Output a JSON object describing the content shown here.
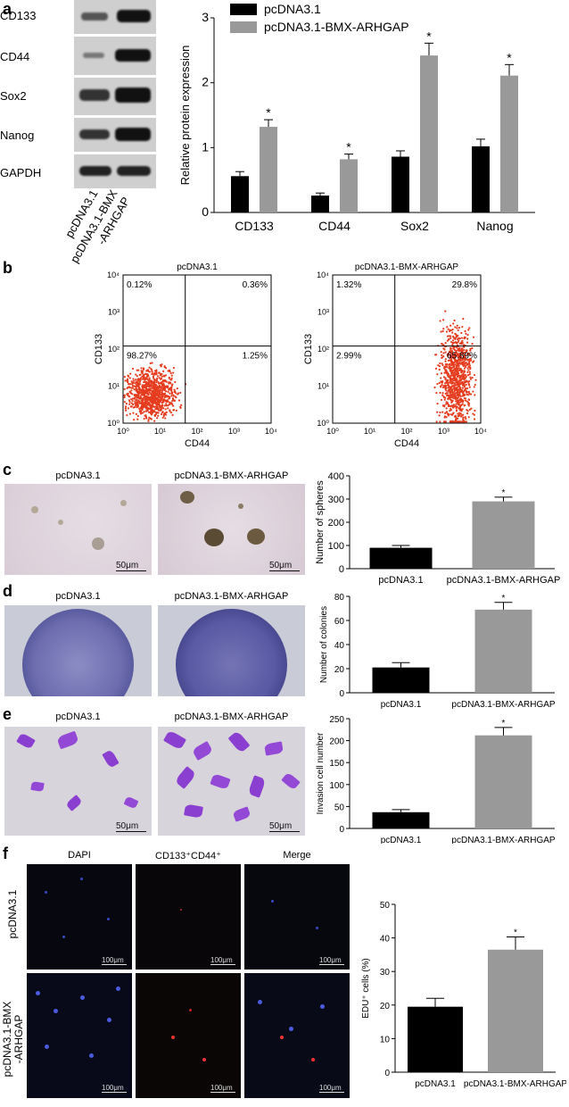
{
  "panels": {
    "a": "a",
    "b": "b",
    "c": "c",
    "d": "d",
    "e": "e",
    "f": "f"
  },
  "western_blot": {
    "proteins": [
      "CD133",
      "CD44",
      "Sox2",
      "Nanog",
      "GAPDH"
    ],
    "lanes": [
      "pcDNA3.1",
      "pcDNA3.1-BMX\n-ARHGAP"
    ],
    "lane_1": "pcDNA3.1",
    "lane_2_line1": "pcDNA3.1-BMX",
    "lane_2_line2": "-ARHGAP"
  },
  "flow": {
    "left": {
      "title": "pcDNA3.1",
      "ul": "0.12%",
      "ur": "0.36%",
      "ll": "98.27%",
      "lr": "1.25%"
    },
    "right": {
      "title": "pcDNA3.1-BMX-ARHGAP",
      "ul": "1.32%",
      "ur": "29.8%",
      "ll": "2.99%",
      "lr": "65.89%"
    },
    "xlabel": "CD44",
    "ylabel": "CD133",
    "ticks": [
      "10⁰",
      "10¹",
      "10²",
      "10³",
      "10⁴"
    ]
  },
  "images": {
    "c_left": "pcDNA3.1",
    "c_right": "pcDNA3.1-BMX-ARHGAP",
    "d_left": "pcDNA3.1",
    "d_right": "pcDNA3.1-BMX-ARHGAP",
    "e_left": "pcDNA3.1",
    "e_right": "pcDNA3.1-BMX-ARHGAP",
    "scale_50": "50μm",
    "scale_100": "100μm",
    "f_cols": [
      "DAPI",
      "CD133⁺CD44⁺",
      "Merge"
    ],
    "f_row1": "pcDNA3.1",
    "f_row2_line1": "pcDNA3.1-BMX",
    "f_row2_line2": "-ARHGAP"
  },
  "colors": {
    "control": "#000000",
    "treat": "#999999",
    "flow_dot": "#e53c1f"
  },
  "chart_data": [
    {
      "type": "bar",
      "panel": "a",
      "categories": [
        "CD133",
        "CD44",
        "Sox2",
        "Nanog"
      ],
      "series": [
        {
          "name": "pcDNA3.1",
          "values": [
            0.56,
            0.26,
            0.86,
            1.02
          ],
          "errors": [
            0.07,
            0.04,
            0.09,
            0.11
          ]
        },
        {
          "name": "pcDNA3.1-BMX-ARHGAP",
          "values": [
            1.32,
            0.82,
            2.42,
            2.11
          ],
          "errors": [
            0.11,
            0.08,
            0.19,
            0.17
          ]
        }
      ],
      "significance": [
        "*",
        "*",
        "*",
        "*"
      ],
      "ylabel": "Relative protein expression",
      "ylim": [
        0,
        3
      ],
      "yticks": [
        "0",
        "1",
        "2",
        "3"
      ]
    },
    {
      "type": "bar",
      "panel": "c",
      "categories": [
        "pcDNA3.1",
        "pcDNA3.1-BMX-ARHGAP"
      ],
      "values": [
        90,
        290
      ],
      "errors": [
        10,
        18
      ],
      "significance": [
        "",
        "*"
      ],
      "ylabel": "Number of spheres",
      "ylim": [
        0,
        400
      ],
      "yticks": [
        "0",
        "100",
        "200",
        "300",
        "400"
      ]
    },
    {
      "type": "bar",
      "panel": "d",
      "categories": [
        "pcDNA3.1",
        "pcDNA3.1-BMX-ARHGAP"
      ],
      "values": [
        21,
        69
      ],
      "errors": [
        4,
        6
      ],
      "significance": [
        "",
        "*"
      ],
      "ylabel": "Number of colonies",
      "ylim": [
        0,
        80
      ],
      "yticks": [
        "0",
        "20",
        "40",
        "60",
        "80"
      ]
    },
    {
      "type": "bar",
      "panel": "e",
      "categories": [
        "pcDNA3.1",
        "pcDNA3.1-BMX-ARHGAP"
      ],
      "values": [
        37,
        212
      ],
      "errors": [
        6,
        18
      ],
      "significance": [
        "",
        "*"
      ],
      "ylabel": "Invasion cell number",
      "ylim": [
        0,
        250
      ],
      "yticks": [
        "0",
        "50",
        "100",
        "150",
        "200",
        "250"
      ]
    },
    {
      "type": "bar",
      "panel": "f",
      "categories": [
        "pcDNA3.1",
        "pcDNA3.1-BMX-ARHGAP"
      ],
      "values": [
        19.5,
        36.5
      ],
      "errors": [
        2.5,
        3.8
      ],
      "significance": [
        "",
        "*"
      ],
      "ylabel": "EDU⁺ cells (%)",
      "ylim": [
        0,
        50
      ],
      "yticks": [
        "0",
        "10",
        "20",
        "30",
        "40",
        "50"
      ]
    }
  ]
}
